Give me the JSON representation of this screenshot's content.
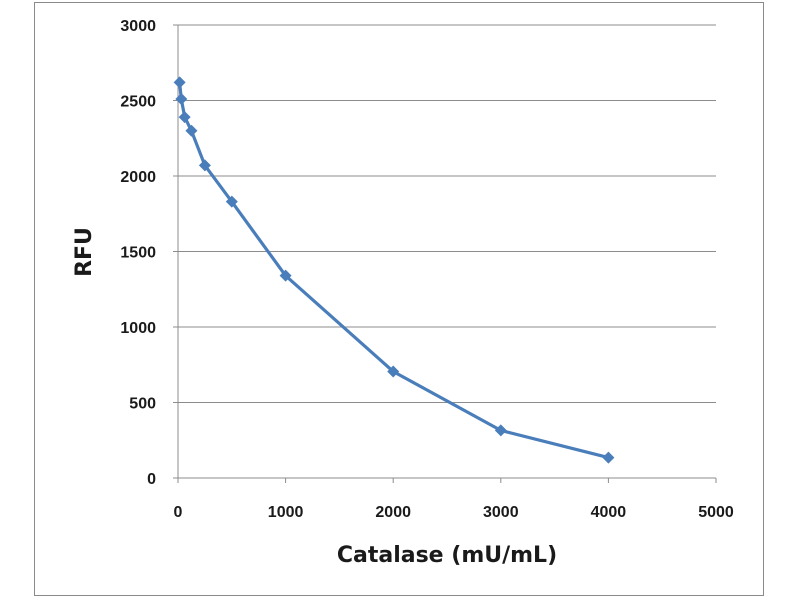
{
  "chart_data": {
    "type": "line",
    "title": "",
    "xlabel": "Catalase (mU/mL)",
    "ylabel": "RFU",
    "xlim": [
      0,
      5000
    ],
    "ylim": [
      0,
      3000
    ],
    "x_ticks": [
      "0",
      "1000",
      "2000",
      "3000",
      "4000",
      "5000"
    ],
    "y_ticks": [
      "0",
      "500",
      "1000",
      "1500",
      "2000",
      "2500",
      "3000"
    ],
    "grid": "horizontal",
    "legend": "none",
    "series": [
      {
        "color": "#4a7ebb",
        "marker": "diamond",
        "points": [
          {
            "x": 15,
            "y": 2620
          },
          {
            "x": 31,
            "y": 2510
          },
          {
            "x": 62,
            "y": 2390
          },
          {
            "x": 125,
            "y": 2300
          },
          {
            "x": 250,
            "y": 2070
          },
          {
            "x": 500,
            "y": 1830
          },
          {
            "x": 1000,
            "y": 1340
          },
          {
            "x": 2000,
            "y": 705
          },
          {
            "x": 3000,
            "y": 315
          },
          {
            "x": 4000,
            "y": 135
          }
        ]
      }
    ]
  }
}
